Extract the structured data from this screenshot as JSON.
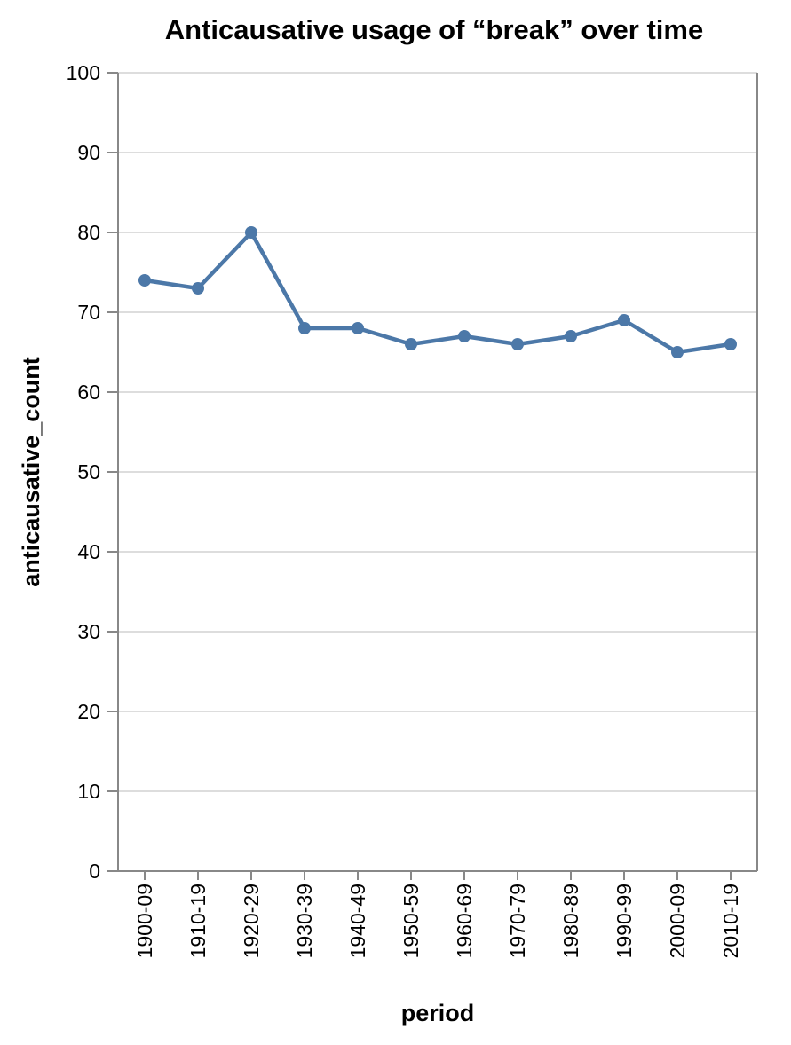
{
  "chart_data": {
    "type": "line",
    "title": "Anticausative usage of “break” over time",
    "xlabel": "period",
    "ylabel": "anticausative_count",
    "categories": [
      "1900-09",
      "1910-19",
      "1920-29",
      "1930-39",
      "1940-49",
      "1950-59",
      "1960-69",
      "1970-79",
      "1980-89",
      "1990-99",
      "2000-09",
      "2010-19"
    ],
    "series": [
      {
        "name": "anticausative_count",
        "values": [
          74,
          73,
          80,
          68,
          68,
          66,
          67,
          66,
          67,
          69,
          65,
          66
        ]
      }
    ],
    "ylim": [
      0,
      100
    ],
    "yticks": [
      "0",
      "10",
      "20",
      "30",
      "40",
      "50",
      "60",
      "70",
      "80",
      "90",
      "100"
    ],
    "grid": true,
    "points": true,
    "colors": {
      "series": "#4c78a8"
    }
  }
}
